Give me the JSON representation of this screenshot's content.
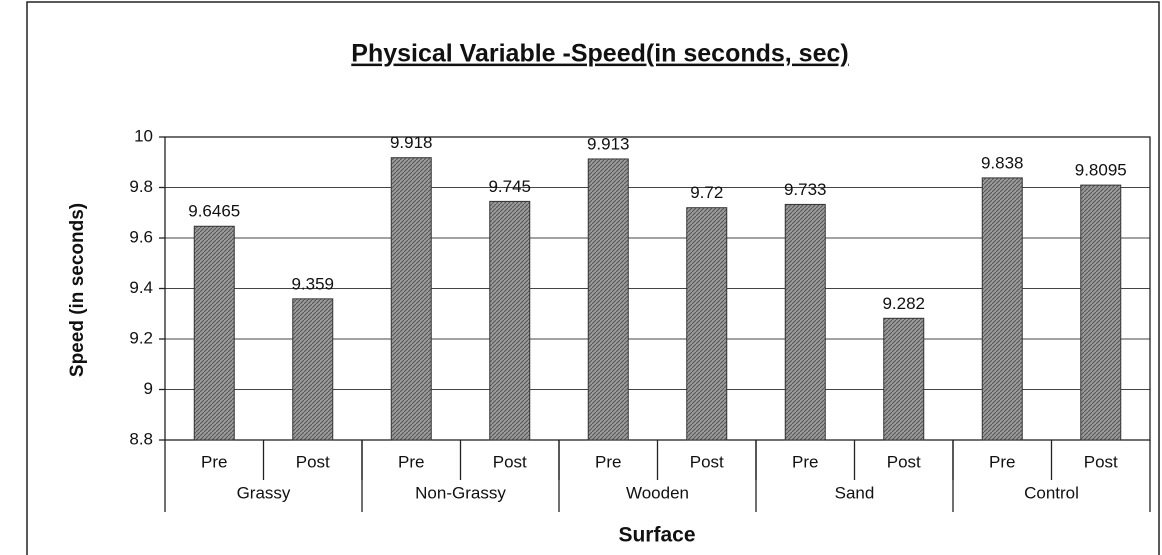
{
  "chart_data": {
    "type": "bar",
    "title": "Physical Variable -Speed(in seconds, sec)",
    "y_label": "Speed (in seconds)",
    "x_label": "Surface",
    "categories": [
      "Pre",
      "Post",
      "Pre",
      "Post",
      "Pre",
      "Post",
      "Pre",
      "Post",
      "Pre",
      "Post"
    ],
    "groups": [
      "Grassy",
      "Non-Grassy",
      "Wooden",
      "Sand",
      "Control"
    ],
    "values": [
      9.6465,
      9.359,
      9.918,
      9.745,
      9.913,
      9.72,
      9.733,
      9.282,
      9.838,
      9.8095
    ],
    "color": "#8a8a8a",
    "ylim": [
      8.8,
      10
    ],
    "yticks": [
      8.8,
      9,
      9.2,
      9.4,
      9.6,
      9.8,
      10
    ],
    "grid": true
  }
}
